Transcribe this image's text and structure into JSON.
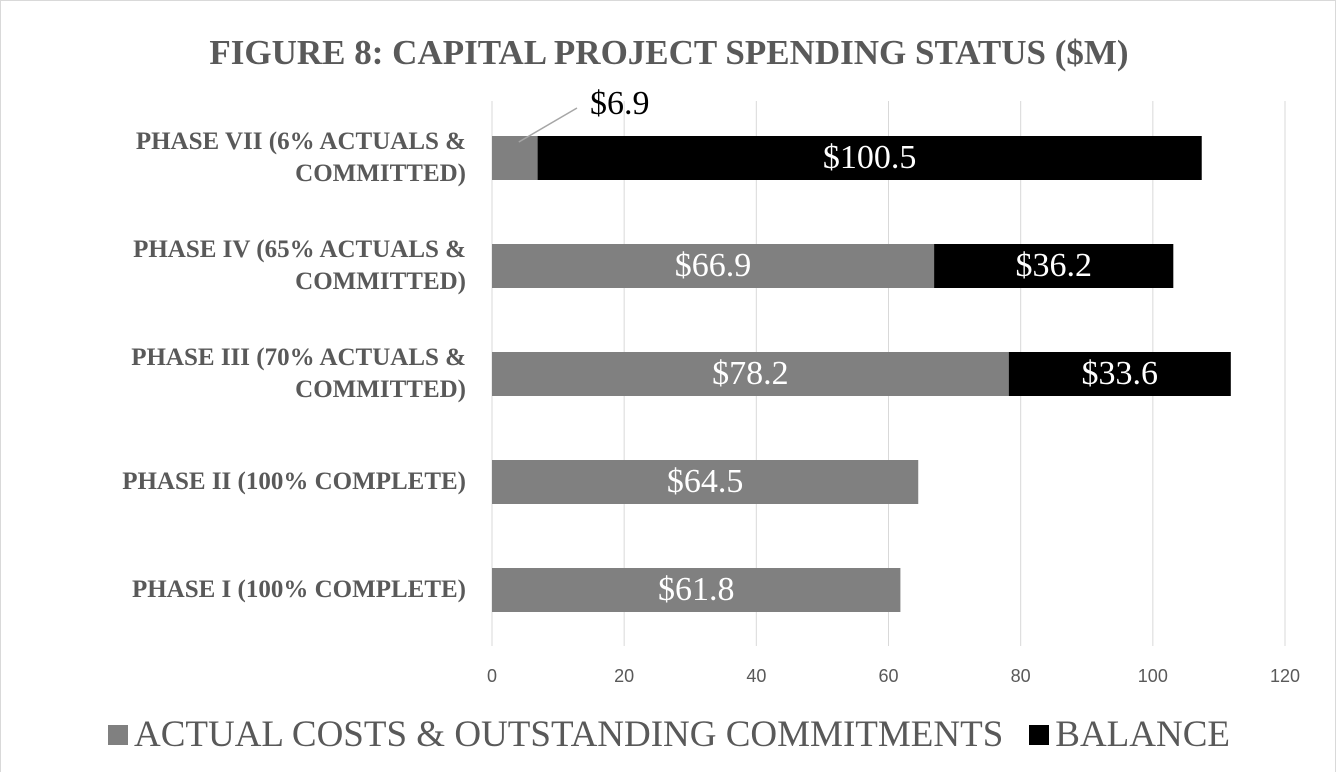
{
  "chart_data": {
    "type": "bar",
    "orientation": "horizontal",
    "stacked": true,
    "title": "FIGURE 8:  CAPITAL PROJECT SPENDING STATUS ($M)",
    "categories": [
      "PHASE VII (6% ACTUALS & COMMITTED)",
      "PHASE IV (65% ACTUALS & COMMITTED)",
      "PHASE III (70% ACTUALS & COMMITTED)",
      "PHASE II (100% COMPLETE)",
      "PHASE I (100% COMPLETE)"
    ],
    "series": [
      {
        "name": "ACTUAL COSTS & OUTSTANDING COMMITMENTS",
        "color": "#808080",
        "values": [
          6.9,
          66.9,
          78.2,
          64.5,
          61.8
        ],
        "value_labels": [
          "$6.9",
          "$66.9",
          "$78.2",
          "$64.5",
          "$61.8"
        ]
      },
      {
        "name": "BALANCE",
        "color": "#000000",
        "values": [
          100.5,
          36.2,
          33.6,
          null,
          null
        ],
        "value_labels": [
          "$100.5",
          "$36.2",
          "$33.6",
          null,
          null
        ]
      }
    ],
    "xlim": [
      0,
      120
    ],
    "xticks": [
      0,
      20,
      40,
      60,
      80,
      100,
      120
    ],
    "grid": true,
    "legend": "bottom"
  }
}
